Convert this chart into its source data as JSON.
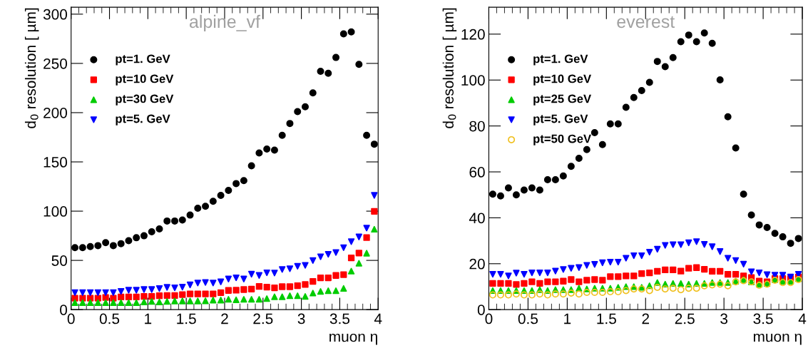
{
  "chart_data": [
    {
      "type": "scatter",
      "title": "alpine_vf",
      "xlabel": "muon η",
      "ylabel": "d$_{0}$ resolution [ µm]",
      "x": [
        0.05,
        0.15,
        0.25,
        0.35,
        0.45,
        0.55,
        0.65,
        0.75,
        0.85,
        0.95,
        1.05,
        1.15,
        1.25,
        1.35,
        1.45,
        1.55,
        1.65,
        1.75,
        1.85,
        1.95,
        2.05,
        2.15,
        2.25,
        2.35,
        2.45,
        2.55,
        2.65,
        2.75,
        2.85,
        2.95,
        3.05,
        3.15,
        3.25,
        3.35,
        3.45,
        3.55,
        3.65,
        3.75,
        3.85,
        3.95
      ],
      "xlim": [
        0,
        4
      ],
      "xticks": [
        0,
        0.5,
        1,
        1.5,
        2,
        2.5,
        3,
        3.5,
        4
      ],
      "ylim": [
        0,
        307
      ],
      "yticks": [
        0,
        50,
        100,
        150,
        200,
        250,
        300
      ],
      "grid": false,
      "legend": "top left",
      "series": [
        {
          "name": "pt=1. GeV",
          "color": "#000000",
          "marker": "circle",
          "values": [
            63,
            63,
            64,
            65,
            68,
            65,
            67,
            70,
            73,
            75,
            79,
            82,
            90,
            90,
            91,
            96,
            103,
            105,
            110,
            116,
            121,
            128,
            131,
            146,
            159,
            163,
            162,
            177,
            189,
            201,
            206,
            220,
            242,
            240,
            256,
            280,
            282,
            249,
            177,
            168
          ]
        },
        {
          "name": "pt=10 GeV",
          "color": "#ff0000",
          "marker": "square",
          "values": [
            11.7,
            11.7,
            11.7,
            11.7,
            12.4,
            11.7,
            12.9,
            12.9,
            12.9,
            13.4,
            13.4,
            14.1,
            14.3,
            14.3,
            15.3,
            16,
            16,
            16,
            16,
            17.3,
            19.5,
            19.7,
            20.4,
            20.9,
            23.6,
            22.9,
            22.1,
            23.3,
            23.3,
            24.3,
            25.5,
            28.7,
            32.3,
            32.3,
            34.7,
            35.5,
            52.5,
            57.5,
            73.1,
            99.8
          ]
        },
        {
          "name": "pt=30 GeV",
          "color": "#00cc00",
          "marker": "triangle",
          "values": [
            7.1,
            7.1,
            7.1,
            7.1,
            7.1,
            7.1,
            7.1,
            7.1,
            7.1,
            7.8,
            8.3,
            7.8,
            8.3,
            8.8,
            8.8,
            8.8,
            8.8,
            9,
            9.7,
            9.7,
            10.5,
            10,
            10.5,
            10.5,
            10.5,
            11.2,
            13.1,
            13.1,
            14.1,
            14.1,
            13.4,
            16.8,
            18.5,
            19.2,
            19.2,
            21.6,
            39.1,
            47.1,
            57.3,
            81.6
          ]
        },
        {
          "name": "pt=5. GeV",
          "color": "#0000ff",
          "marker": "triangle-down",
          "values": [
            17.3,
            17.3,
            17.3,
            17.3,
            17.3,
            17.3,
            18.5,
            19.7,
            19.7,
            20.4,
            20.4,
            21.4,
            22.6,
            22.1,
            22.9,
            25.1,
            27,
            27.5,
            27,
            28.2,
            31.1,
            32.3,
            31.1,
            36,
            34.7,
            37.4,
            37.2,
            40.8,
            41.5,
            44,
            44.9,
            49.8,
            53.7,
            56.1,
            58,
            62.9,
            69,
            73.8,
            82.8,
            116
          ]
        }
      ]
    },
    {
      "type": "scatter",
      "title": "everest",
      "xlabel": "muon η",
      "ylabel": "d$_{0}$ resolution [ µm]",
      "x": [
        0.05,
        0.15,
        0.25,
        0.35,
        0.45,
        0.55,
        0.65,
        0.75,
        0.85,
        0.95,
        1.05,
        1.15,
        1.25,
        1.35,
        1.45,
        1.55,
        1.65,
        1.75,
        1.85,
        1.95,
        2.05,
        2.15,
        2.25,
        2.35,
        2.45,
        2.55,
        2.65,
        2.75,
        2.85,
        2.95,
        3.05,
        3.15,
        3.25,
        3.35,
        3.45,
        3.55,
        3.65,
        3.75,
        3.85,
        3.95
      ],
      "xlim": [
        0,
        4
      ],
      "xticks": [
        0,
        0.5,
        1,
        1.5,
        2,
        2.5,
        3,
        3.5,
        4
      ],
      "ylim": [
        0,
        131.7
      ],
      "yticks": [
        0,
        20,
        40,
        60,
        80,
        100,
        120
      ],
      "grid": false,
      "legend": "top left",
      "series": [
        {
          "name": "pt=1. GeV",
          "color": "#000000",
          "marker": "circle",
          "values": [
            50.3,
            49.5,
            53,
            50,
            52.1,
            53,
            52.1,
            56.6,
            56.6,
            58.2,
            62.4,
            65.9,
            69.7,
            77.1,
            71.9,
            80.9,
            80.9,
            88.1,
            92.4,
            95.4,
            99,
            108.1,
            105.8,
            109.8,
            116.7,
            119.6,
            116.7,
            120.5,
            116,
            100.1,
            84,
            70.4,
            50.3,
            41.2,
            36.9,
            35.8,
            33.2,
            31.7,
            28.9,
            31
          ]
        },
        {
          "name": "pt=10 GeV",
          "color": "#ff0000",
          "marker": "square",
          "values": [
            11.4,
            11.4,
            11.4,
            11,
            11.4,
            12.1,
            11.4,
            12.1,
            12.1,
            12.4,
            13.1,
            12.1,
            12.8,
            13.1,
            12.8,
            14.4,
            14.4,
            14.7,
            14.7,
            15.7,
            16,
            16.7,
            17.3,
            17.3,
            16.8,
            18,
            18.3,
            17.6,
            16.7,
            16.7,
            15.4,
            15.4,
            14.7,
            14,
            12.4,
            12.1,
            13.5,
            13.5,
            13.5,
            14.2
          ]
        },
        {
          "name": "pt=25 GeV",
          "color": "#00cc00",
          "marker": "triangle",
          "values": [
            8.3,
            8.3,
            8.3,
            8.3,
            8.3,
            8.3,
            8.7,
            8.3,
            8.7,
            8.7,
            8.7,
            9.3,
            9,
            9.3,
            9.3,
            9.3,
            9.7,
            10,
            10,
            9.7,
            10.4,
            11.8,
            11.1,
            11.4,
            11.4,
            11.1,
            11.4,
            11.4,
            11.8,
            11.8,
            11.8,
            12.4,
            13.1,
            12.1,
            11.1,
            11.4,
            13.1,
            12.4,
            12.4,
            13.5
          ]
        },
        {
          "name": "pt=5. GeV",
          "color": "#0000ff",
          "marker": "triangle-down",
          "values": [
            15.4,
            15.4,
            14.7,
            15.9,
            15.4,
            16,
            16,
            16,
            16.8,
            17.5,
            18,
            18.3,
            19.3,
            19.7,
            20.4,
            20.7,
            20.7,
            22.4,
            23.5,
            23.5,
            25,
            26.3,
            28,
            28.3,
            28.3,
            29.1,
            29.6,
            28.4,
            27.4,
            25.3,
            22.4,
            21.4,
            19.8,
            16.5,
            16,
            15.2,
            15,
            15,
            14.2,
            15.4
          ]
        },
        {
          "name": "pt=50 GeV",
          "color": "#f0c020",
          "marker": "circle-open",
          "values": [
            6.4,
            6.4,
            6.4,
            6.8,
            6.4,
            6.4,
            6.8,
            6.4,
            6.8,
            6.8,
            7.2,
            6.8,
            7.5,
            7.5,
            7.5,
            7.8,
            7.8,
            8.3,
            9,
            9,
            8.3,
            9.7,
            9,
            9.3,
            8.7,
            9.3,
            9.3,
            10.4,
            10.8,
            11.1,
            10.4,
            12.1,
            12.6,
            12.1,
            10.6,
            11.1,
            12.8,
            11.8,
            11.8,
            13.1
          ]
        }
      ]
    }
  ]
}
